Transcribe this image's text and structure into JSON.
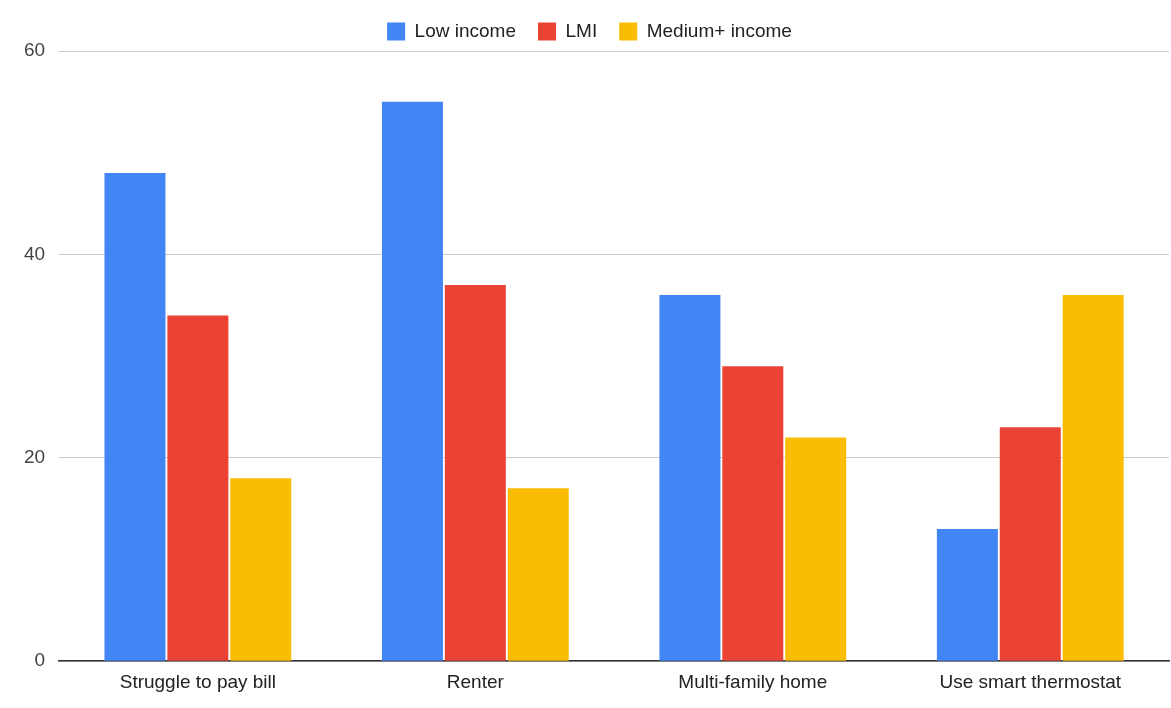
{
  "chart_data": {
    "type": "bar",
    "categories": [
      "Struggle to pay bill",
      "Renter",
      "Multi-family home",
      "Use smart thermostat"
    ],
    "series": [
      {
        "name": "Low income",
        "color": "#4285f4",
        "values": [
          48,
          55,
          36,
          13
        ]
      },
      {
        "name": "LMI",
        "color": "#ea4335",
        "values": [
          34,
          37,
          29,
          23
        ]
      },
      {
        "name": "Medium+ income",
        "color": "#fbbc04",
        "values": [
          18,
          17,
          22,
          36
        ]
      }
    ],
    "ylim": [
      0,
      60
    ],
    "yticks": [
      0,
      20,
      40,
      60
    ],
    "grid": "y",
    "legend": "top"
  }
}
